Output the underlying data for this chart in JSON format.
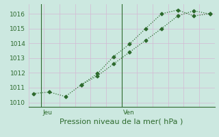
{
  "line1_x": [
    0,
    1,
    2,
    3,
    4,
    5,
    6,
    7,
    8,
    9,
    10,
    11
  ],
  "line1_y": [
    1010.6,
    1010.7,
    1010.4,
    1011.2,
    1011.95,
    1013.1,
    1013.95,
    1015.0,
    1016.0,
    1016.25,
    1015.85,
    1016.0
  ],
  "line2_x": [
    3,
    4,
    5,
    6,
    7,
    8,
    9,
    10,
    11
  ],
  "line2_y": [
    1011.2,
    1011.8,
    1012.6,
    1013.4,
    1014.2,
    1015.0,
    1015.85,
    1016.2,
    1015.98
  ],
  "line_color": "#2d6a2d",
  "bg_color": "#cce8e0",
  "grid_h_color": "#d4b8d4",
  "grid_v_color": "#d4b8d4",
  "plot_bg": "#cce8e0",
  "ylabel_ticks": [
    1010,
    1011,
    1012,
    1013,
    1014,
    1015,
    1016
  ],
  "ylim": [
    1009.7,
    1016.65
  ],
  "xlim": [
    -0.3,
    11.3
  ],
  "jeu_x": 0.5,
  "ven_x": 5.5,
  "xlabel": "Pression niveau de la mer( hPa )",
  "tick_fontsize": 6.5,
  "label_fontsize": 8,
  "border_color": "#2d6a2d",
  "grid_nx": 12,
  "grid_ny": 7
}
